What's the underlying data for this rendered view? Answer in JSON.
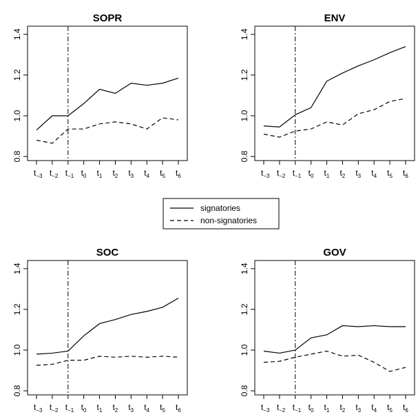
{
  "chart_data": [
    {
      "type": "line",
      "title": "SOPR",
      "categories": [
        "t",
        "t",
        "t",
        "t",
        "t",
        "t",
        "t",
        "t",
        "t",
        "t"
      ],
      "category_subscripts": [
        "-3",
        "-2",
        "-1",
        "0",
        "1",
        "2",
        "3",
        "4",
        "5",
        "6"
      ],
      "yticks": [
        "0.8",
        "1.0",
        "1.2",
        "1.4"
      ],
      "ylim": [
        0.78,
        1.44
      ],
      "event_line_category": 2,
      "series": [
        {
          "name": "signatories",
          "style": "solid",
          "values": [
            0.93,
            1.0,
            1.0,
            1.06,
            1.13,
            1.11,
            1.16,
            1.15,
            1.16,
            1.185
          ]
        },
        {
          "name": "non-signatories",
          "style": "dashed",
          "values": [
            0.88,
            0.865,
            0.935,
            0.935,
            0.96,
            0.97,
            0.96,
            0.935,
            0.99,
            0.98
          ]
        }
      ]
    },
    {
      "type": "line",
      "title": "ENV",
      "categories": [
        "t",
        "t",
        "t",
        "t",
        "t",
        "t",
        "t",
        "t",
        "t",
        "t"
      ],
      "category_subscripts": [
        "-3",
        "-2",
        "-1",
        "0",
        "1",
        "2",
        "3",
        "4",
        "5",
        "6"
      ],
      "yticks": [
        "0.8",
        "1.0",
        "1.2",
        "1.4"
      ],
      "ylim": [
        0.78,
        1.44
      ],
      "event_line_category": 2,
      "series": [
        {
          "name": "signatories",
          "style": "solid",
          "values": [
            0.95,
            0.945,
            1.005,
            1.04,
            1.17,
            1.21,
            1.245,
            1.275,
            1.31,
            1.34
          ]
        },
        {
          "name": "non-signatories",
          "style": "dashed",
          "values": [
            0.91,
            0.895,
            0.925,
            0.935,
            0.97,
            0.955,
            1.01,
            1.03,
            1.07,
            1.085
          ]
        }
      ]
    },
    {
      "type": "line",
      "title": "SOC",
      "categories": [
        "t",
        "t",
        "t",
        "t",
        "t",
        "t",
        "t",
        "t",
        "t",
        "t"
      ],
      "category_subscripts": [
        "-3",
        "-2",
        "-1",
        "0",
        "1",
        "2",
        "3",
        "4",
        "5",
        "6"
      ],
      "yticks": [
        "0.8",
        "1.0",
        "1.2",
        "1.4"
      ],
      "ylim": [
        0.78,
        1.44
      ],
      "event_line_category": 2,
      "series": [
        {
          "name": "signatories",
          "style": "solid",
          "values": [
            0.98,
            0.985,
            0.995,
            1.07,
            1.13,
            1.15,
            1.175,
            1.19,
            1.21,
            1.255
          ]
        },
        {
          "name": "non-signatories",
          "style": "dashed",
          "values": [
            0.925,
            0.93,
            0.95,
            0.95,
            0.97,
            0.965,
            0.97,
            0.965,
            0.97,
            0.965
          ]
        }
      ]
    },
    {
      "type": "line",
      "title": "GOV",
      "categories": [
        "t",
        "t",
        "t",
        "t",
        "t",
        "t",
        "t",
        "t",
        "t",
        "t"
      ],
      "category_subscripts": [
        "-3",
        "-2",
        "-1",
        "0",
        "1",
        "2",
        "3",
        "4",
        "5",
        "6"
      ],
      "yticks": [
        "0.8",
        "1.0",
        "1.2",
        "1.4"
      ],
      "ylim": [
        0.78,
        1.44
      ],
      "event_line_category": 2,
      "series": [
        {
          "name": "signatories",
          "style": "solid",
          "values": [
            0.995,
            0.985,
            1.0,
            1.06,
            1.075,
            1.12,
            1.115,
            1.12,
            1.115,
            1.115
          ]
        },
        {
          "name": "non-signatories",
          "style": "dashed",
          "values": [
            0.94,
            0.945,
            0.965,
            0.98,
            0.995,
            0.97,
            0.975,
            0.94,
            0.895,
            0.915
          ]
        }
      ]
    }
  ],
  "legend": {
    "placement": "center",
    "items": [
      {
        "label": "signatories",
        "style": "solid"
      },
      {
        "label": "non-signatories",
        "style": "dashed"
      }
    ]
  },
  "colors": {
    "line": "#000000",
    "background": "#ffffff"
  }
}
